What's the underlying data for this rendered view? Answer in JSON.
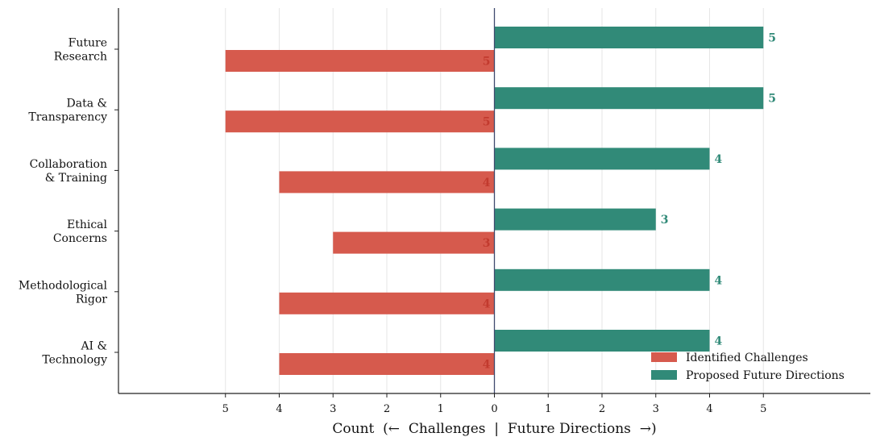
{
  "chart_data": {
    "type": "bar",
    "orientation": "horizontal-diverging",
    "categories": [
      [
        "Future",
        "Research"
      ],
      [
        "Data &",
        "Transparency"
      ],
      [
        "Collaboration",
        "& Training"
      ],
      [
        "Ethical",
        "Concerns"
      ],
      [
        "Methodological",
        "Rigor"
      ],
      [
        "AI &",
        "Technology"
      ]
    ],
    "series": [
      {
        "name": "Identified Challenges",
        "color": "#d65a4d",
        "direction": "negative",
        "values": [
          5,
          5,
          4,
          3,
          4,
          4
        ]
      },
      {
        "name": "Proposed Future Directions",
        "color": "#318a78",
        "direction": "positive",
        "values": [
          5,
          5,
          4,
          3,
          4,
          4
        ]
      }
    ],
    "xlabel": "Count  (←  Challenges  |  Future Directions  →)",
    "xlim": [
      -7,
      7
    ],
    "x_ticks": [
      -5,
      -4,
      -3,
      -2,
      -1,
      0,
      1,
      2,
      3,
      4,
      5
    ],
    "x_tick_labels": [
      "5",
      "4",
      "3",
      "2",
      "1",
      "0",
      "1",
      "2",
      "3",
      "4",
      "5"
    ],
    "grid": "vertical",
    "legend_position": "lower-right",
    "data_labels": true
  }
}
